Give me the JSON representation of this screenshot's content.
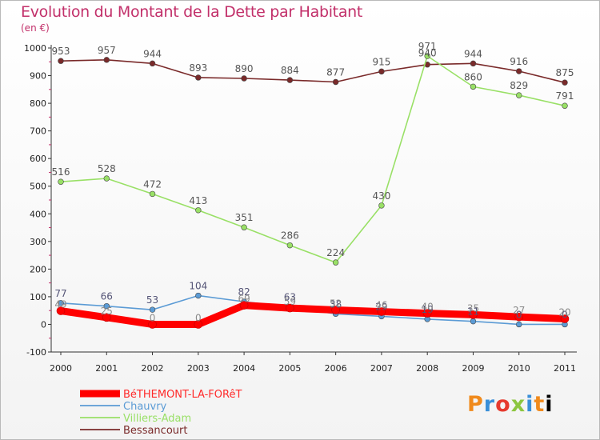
{
  "title": "Evolution du Montant de la Dette par Habitant",
  "unit": "(en €)",
  "logo": "Proxiti",
  "chart_data": {
    "type": "line",
    "x": [
      "2000",
      "2001",
      "2002",
      "2003",
      "2004",
      "2005",
      "2006",
      "2007",
      "2008",
      "2009",
      "2010",
      "2011"
    ],
    "ylim": [
      -100,
      1000
    ],
    "yticks": [
      -100,
      0,
      100,
      200,
      300,
      400,
      500,
      600,
      700,
      800,
      900,
      1000
    ],
    "grid": false,
    "legend": "bottom-left",
    "series": [
      {
        "name": "BéTHEMONT-LA-FORêT",
        "color": "#ff0000",
        "values": [
          49,
          25,
          0,
          0,
          69,
          59,
          52,
          46,
          40,
          35,
          27,
          20
        ],
        "labels": [
          "49",
          "25",
          "0",
          "0",
          "69",
          "59",
          "52",
          "46",
          "40",
          "35",
          "27",
          "20"
        ]
      },
      {
        "name": "Chauvry",
        "color": "#5b9bd5",
        "values": [
          77,
          66,
          53,
          104,
          82,
          63,
          38,
          29,
          19,
          11,
          0,
          0
        ],
        "labels": [
          "77",
          "66",
          "53",
          "104",
          "82",
          "63",
          "38",
          "29",
          "19",
          "11",
          "0",
          "0"
        ]
      },
      {
        "name": "Villiers-Adam",
        "color": "#99e066",
        "values": [
          516,
          528,
          472,
          413,
          351,
          286,
          224,
          430,
          971,
          860,
          829,
          791
        ],
        "labels": [
          "516",
          "528",
          "472",
          "413",
          "351",
          "286",
          "224",
          "430",
          "971",
          "860",
          "829",
          "791"
        ]
      },
      {
        "name": "Bessancourt",
        "color": "#7a2a2a",
        "values": [
          953,
          957,
          944,
          893,
          890,
          884,
          877,
          915,
          940,
          944,
          916,
          875
        ],
        "labels": [
          "953",
          "957",
          "944",
          "893",
          "890",
          "884",
          "877",
          "915",
          "940",
          "944",
          "916",
          "875"
        ]
      }
    ]
  }
}
